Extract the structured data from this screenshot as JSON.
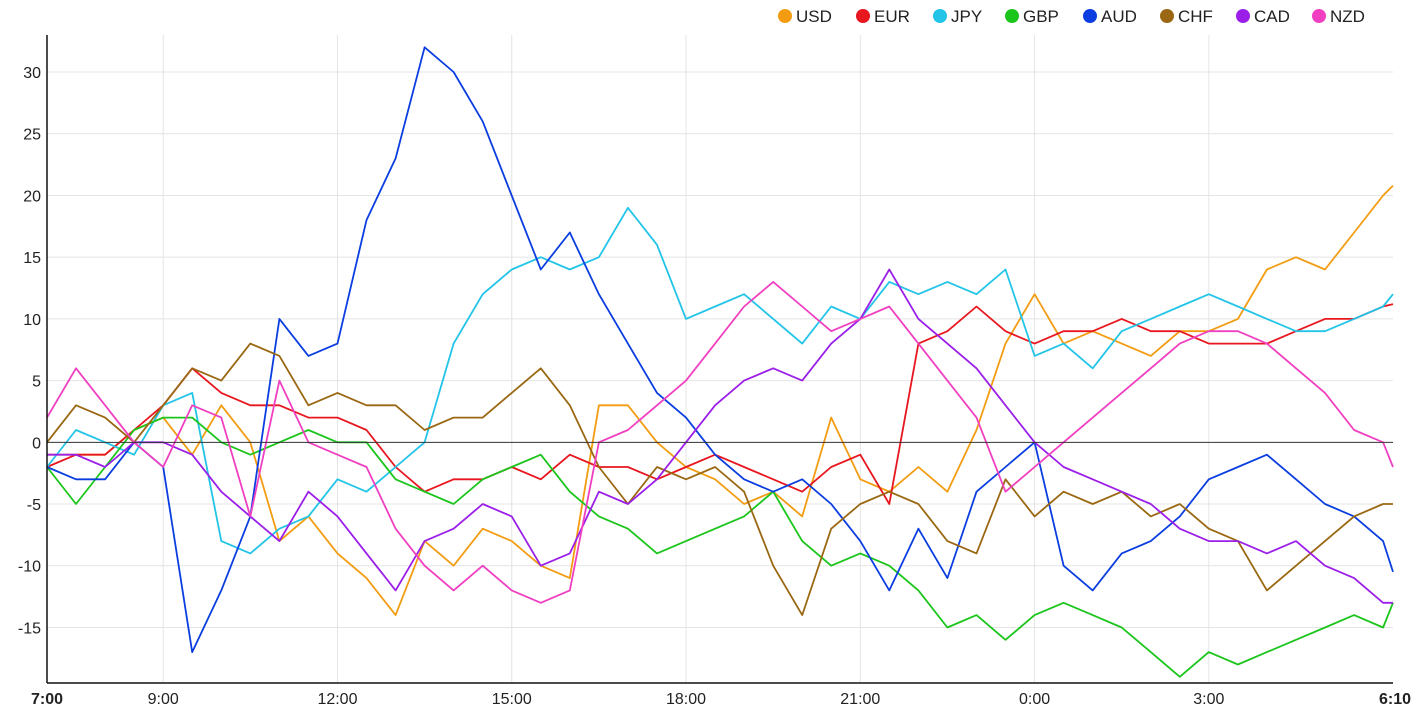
{
  "chart_data": {
    "type": "line",
    "title": "",
    "xlabel": "",
    "ylabel": "",
    "ylim": [
      -19.5,
      33
    ],
    "yticks": [
      30,
      25,
      20,
      15,
      10,
      5,
      0,
      -5,
      -10,
      -15
    ],
    "grid": true,
    "legend_position": "top-right",
    "x_tick_labels": [
      {
        "label": "7:00",
        "hour": 0,
        "bold": true
      },
      {
        "label": "9:00",
        "hour": 2,
        "bold": false
      },
      {
        "label": "12:00",
        "hour": 5,
        "bold": false
      },
      {
        "label": "15:00",
        "hour": 8,
        "bold": false
      },
      {
        "label": "18:00",
        "hour": 11,
        "bold": false
      },
      {
        "label": "21:00",
        "hour": 14,
        "bold": false
      },
      {
        "label": "0:00",
        "hour": 17,
        "bold": false
      },
      {
        "label": "3:00",
        "hour": 20,
        "bold": false
      },
      {
        "label": "6:10",
        "hour": 23.17,
        "bold": true
      }
    ],
    "x_hours": [
      0,
      0.5,
      1,
      1.5,
      2,
      2.5,
      3,
      3.5,
      4,
      4.5,
      5,
      5.5,
      6,
      6.5,
      7,
      7.5,
      8,
      8.5,
      9,
      9.5,
      10,
      10.5,
      11,
      11.5,
      12,
      12.5,
      13,
      13.5,
      14,
      14.5,
      15,
      15.5,
      16,
      16.5,
      17,
      17.5,
      18,
      18.5,
      19,
      19.5,
      20,
      20.5,
      21,
      21.5,
      22,
      22.5,
      23,
      23.17
    ],
    "series": [
      {
        "name": "USD",
        "color": "#f39c12",
        "values": [
          -1,
          -1,
          -1,
          1,
          2,
          -1,
          3,
          0,
          -8,
          -6,
          -9,
          -11,
          -14,
          -8,
          -10,
          -7,
          -8,
          -10,
          -11,
          3,
          3,
          0,
          -2,
          -3,
          -5,
          -4,
          -6,
          2,
          -3,
          -4,
          -2,
          -4,
          1,
          8,
          12,
          8,
          9,
          8,
          7,
          9,
          9,
          10,
          14,
          15,
          14,
          17,
          20,
          20.8
        ]
      },
      {
        "name": "EUR",
        "color": "#e8161e",
        "values": [
          -2,
          -1,
          -1,
          1,
          3,
          6,
          4,
          3,
          3,
          2,
          2,
          1,
          -2,
          -4,
          -3,
          -3,
          -2,
          -3,
          -1,
          -2,
          -2,
          -3,
          -2,
          -1,
          -2,
          -3,
          -4,
          -2,
          -1,
          -5,
          8,
          9,
          11,
          9,
          8,
          9,
          9,
          10,
          9,
          9,
          8,
          8,
          8,
          9,
          10,
          10,
          11,
          11.2
        ]
      },
      {
        "name": "JPY",
        "color": "#22c4e8",
        "values": [
          -2,
          1,
          0,
          -1,
          3,
          4,
          -8,
          -9,
          -7,
          -6,
          -3,
          -4,
          -2,
          0,
          8,
          12,
          14,
          15,
          14,
          15,
          19,
          16,
          10,
          11,
          12,
          10,
          8,
          11,
          10,
          13,
          12,
          13,
          12,
          14,
          7,
          8,
          6,
          9,
          10,
          11,
          12,
          11,
          10,
          9,
          9,
          10,
          11,
          12
        ]
      },
      {
        "name": "GBP",
        "color": "#1bc51b",
        "values": [
          -2,
          -5,
          -2,
          1,
          2,
          2,
          0,
          -1,
          0,
          1,
          0,
          0,
          -3,
          -4,
          -5,
          -3,
          -2,
          -1,
          -4,
          -6,
          -7,
          -9,
          -8,
          -7,
          -6,
          -4,
          -8,
          -10,
          -9,
          -10,
          -12,
          -15,
          -14,
          -16,
          -14,
          -13,
          -14,
          -15,
          -17,
          -19,
          -17,
          -18,
          -17,
          -16,
          -15,
          -14,
          -15,
          -13
        ]
      },
      {
        "name": "AUD",
        "color": "#0b3ee0",
        "values": [
          -2,
          -3,
          -3,
          0,
          -2,
          -17,
          -12,
          -6,
          10,
          7,
          8,
          18,
          23,
          32,
          30,
          26,
          20,
          14,
          17,
          12,
          8,
          4,
          2,
          -1,
          -3,
          -4,
          -3,
          -5,
          -8,
          -12,
          -7,
          -11,
          -4,
          -2,
          0,
          -10,
          -12,
          -9,
          -8,
          -6,
          -3,
          -2,
          -1,
          -3,
          -5,
          -6,
          -8,
          -10.5
        ]
      },
      {
        "name": "CHF",
        "color": "#9a6812",
        "values": [
          0,
          3,
          2,
          0,
          3,
          6,
          5,
          8,
          7,
          3,
          4,
          3,
          3,
          1,
          2,
          2,
          4,
          6,
          3,
          -2,
          -5,
          -2,
          -3,
          -2,
          -4,
          -10,
          -14,
          -7,
          -5,
          -4,
          -5,
          -8,
          -9,
          -3,
          -6,
          -4,
          -5,
          -4,
          -6,
          -5,
          -7,
          -8,
          -12,
          -10,
          -8,
          -6,
          -5,
          -5
        ]
      },
      {
        "name": "CAD",
        "color": "#9b1fe8",
        "values": [
          -1,
          -1,
          -2,
          0,
          0,
          -1,
          -4,
          -6,
          -8,
          -4,
          -6,
          -9,
          -12,
          -8,
          -7,
          -5,
          -6,
          -10,
          -9,
          -4,
          -5,
          -3,
          0,
          3,
          5,
          6,
          5,
          8,
          10,
          14,
          10,
          8,
          6,
          3,
          0,
          -2,
          -3,
          -4,
          -5,
          -7,
          -8,
          -8,
          -9,
          -8,
          -10,
          -11,
          -13,
          -13
        ]
      },
      {
        "name": "NZD",
        "color": "#f03fc1",
        "values": [
          2,
          6,
          3,
          0,
          -2,
          3,
          2,
          -6,
          5,
          0,
          -1,
          -2,
          -7,
          -10,
          -12,
          -10,
          -12,
          -13,
          -12,
          0,
          1,
          3,
          5,
          8,
          11,
          13,
          11,
          9,
          10,
          11,
          8,
          5,
          2,
          -4,
          -2,
          0,
          2,
          4,
          6,
          8,
          9,
          9,
          8,
          6,
          4,
          1,
          0,
          -2
        ]
      }
    ]
  }
}
